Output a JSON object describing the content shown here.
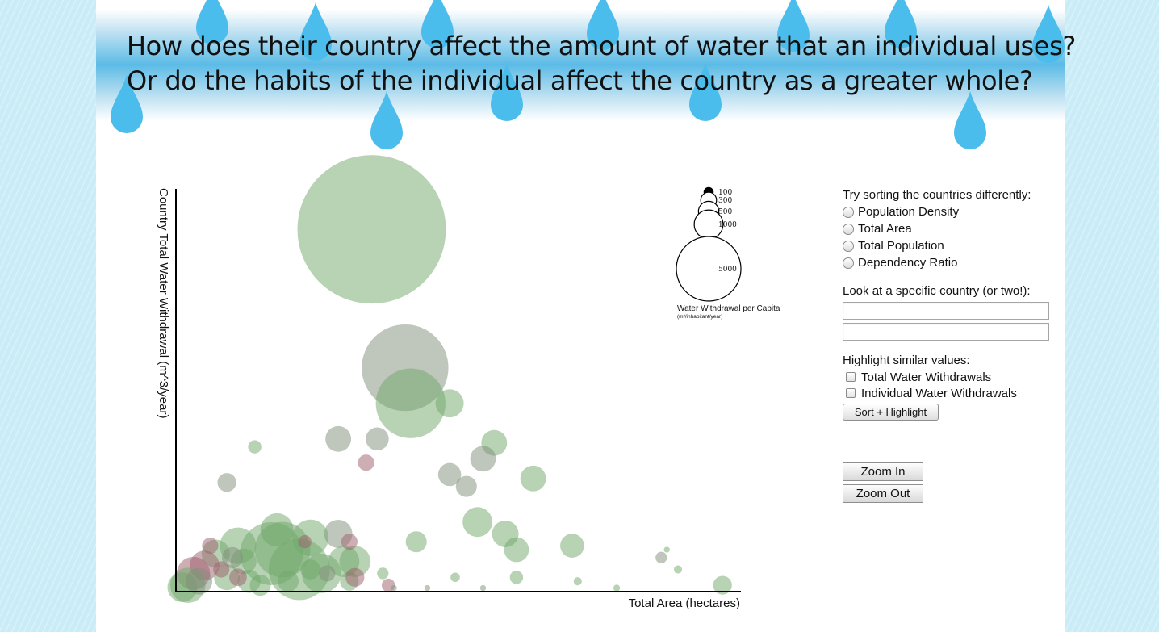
{
  "headline": {
    "line1": "How does their country affect the amount of water that an individual uses?",
    "line2": "Or do the habits of the individual affect the country as a greater whole?"
  },
  "chart_data": {
    "type": "scatter",
    "title": "",
    "xlabel": "Total Area (hectares)",
    "ylabel": "Country Total Water Withdrawal (m^3/year)",
    "size_legend": {
      "title": "Water Withdrawal per Capita",
      "unit": "(m³/inhabitant/year)",
      "values": [
        100,
        300,
        500,
        1000,
        5000
      ]
    },
    "colors": {
      "green": "#6fa86a",
      "gray": "#7f8e7a",
      "red": "#9e5d6b"
    },
    "points": [
      {
        "x": 0.35,
        "y": 0.91,
        "size": 5000,
        "color": "green"
      },
      {
        "x": 0.41,
        "y": 0.56,
        "size": 1700,
        "color": "gray"
      },
      {
        "x": 0.42,
        "y": 0.47,
        "size": 1100,
        "color": "green"
      },
      {
        "x": 0.36,
        "y": 0.38,
        "size": 120,
        "color": "gray"
      },
      {
        "x": 0.29,
        "y": 0.14,
        "size": 180,
        "color": "gray"
      },
      {
        "x": 0.3,
        "y": 0.07,
        "size": 220,
        "color": "green"
      },
      {
        "x": 0.32,
        "y": 0.07,
        "size": 220,
        "color": "green"
      },
      {
        "x": 0.49,
        "y": 0.47,
        "size": 180,
        "color": "green"
      },
      {
        "x": 0.29,
        "y": 0.38,
        "size": 150,
        "color": "gray"
      },
      {
        "x": 0.57,
        "y": 0.37,
        "size": 150,
        "color": "green"
      },
      {
        "x": 0.55,
        "y": 0.33,
        "size": 150,
        "color": "gray"
      },
      {
        "x": 0.49,
        "y": 0.29,
        "size": 120,
        "color": "gray"
      },
      {
        "x": 0.52,
        "y": 0.26,
        "size": 100,
        "color": "gray"
      },
      {
        "x": 0.64,
        "y": 0.28,
        "size": 150,
        "color": "green"
      },
      {
        "x": 0.61,
        "y": 0.1,
        "size": 140,
        "color": "green"
      },
      {
        "x": 0.54,
        "y": 0.17,
        "size": 200,
        "color": "green"
      },
      {
        "x": 0.59,
        "y": 0.14,
        "size": 160,
        "color": "green"
      },
      {
        "x": 0.71,
        "y": 0.11,
        "size": 130,
        "color": "green"
      },
      {
        "x": 0.43,
        "y": 0.12,
        "size": 100,
        "color": "green"
      },
      {
        "x": 0.09,
        "y": 0.27,
        "size": 80,
        "color": "gray"
      },
      {
        "x": 0.14,
        "y": 0.36,
        "size": 40,
        "color": "green"
      },
      {
        "x": 0.34,
        "y": 0.32,
        "size": 60,
        "color": "red"
      },
      {
        "x": 0.17,
        "y": 0.09,
        "size": 900,
        "color": "green"
      },
      {
        "x": 0.19,
        "y": 0.1,
        "size": 700,
        "color": "green"
      },
      {
        "x": 0.22,
        "y": 0.05,
        "size": 850,
        "color": "green"
      },
      {
        "x": 0.24,
        "y": 0.13,
        "size": 300,
        "color": "green"
      },
      {
        "x": 0.18,
        "y": 0.15,
        "size": 250,
        "color": "green"
      },
      {
        "x": 0.26,
        "y": 0.04,
        "size": 350,
        "color": "green"
      },
      {
        "x": 0.11,
        "y": 0.11,
        "size": 300,
        "color": "green"
      },
      {
        "x": 0.07,
        "y": 0.09,
        "size": 180,
        "color": "green"
      },
      {
        "x": 0.05,
        "y": 0.06,
        "size": 200,
        "color": "red"
      },
      {
        "x": 0.03,
        "y": 0.04,
        "size": 250,
        "color": "red"
      },
      {
        "x": 0.02,
        "y": 0.01,
        "size": 280,
        "color": "green"
      },
      {
        "x": 0.01,
        "y": 0.005,
        "size": 200,
        "color": "green"
      },
      {
        "x": 0.04,
        "y": 0.02,
        "size": 160,
        "color": "gray"
      },
      {
        "x": 0.12,
        "y": 0.07,
        "size": 150,
        "color": "green"
      },
      {
        "x": 0.09,
        "y": 0.03,
        "size": 150,
        "color": "green"
      },
      {
        "x": 0.1,
        "y": 0.08,
        "size": 100,
        "color": "gray"
      },
      {
        "x": 0.13,
        "y": 0.02,
        "size": 120,
        "color": "green"
      },
      {
        "x": 0.15,
        "y": 0.01,
        "size": 100,
        "color": "green"
      },
      {
        "x": 0.2,
        "y": 0.02,
        "size": 100,
        "color": "green"
      },
      {
        "x": 0.24,
        "y": 0.05,
        "size": 90,
        "color": "green"
      },
      {
        "x": 0.23,
        "y": 0.12,
        "size": 40,
        "color": "red"
      },
      {
        "x": 0.31,
        "y": 0.02,
        "size": 80,
        "color": "green"
      },
      {
        "x": 0.31,
        "y": 0.12,
        "size": 60,
        "color": "red"
      },
      {
        "x": 0.32,
        "y": 0.03,
        "size": 80,
        "color": "red"
      },
      {
        "x": 0.38,
        "y": 0.01,
        "size": 40,
        "color": "red"
      },
      {
        "x": 0.08,
        "y": 0.05,
        "size": 60,
        "color": "red"
      },
      {
        "x": 0.11,
        "y": 0.03,
        "size": 70,
        "color": "red"
      },
      {
        "x": 0.06,
        "y": 0.11,
        "size": 60,
        "color": "red"
      },
      {
        "x": 0.27,
        "y": 0.04,
        "size": 60,
        "color": "gray"
      },
      {
        "x": 0.37,
        "y": 0.04,
        "size": 30,
        "color": "green"
      },
      {
        "x": 0.5,
        "y": 0.03,
        "size": 20,
        "color": "green"
      },
      {
        "x": 0.61,
        "y": 0.03,
        "size": 40,
        "color": "green"
      },
      {
        "x": 0.87,
        "y": 0.08,
        "size": 30,
        "color": "gray"
      },
      {
        "x": 0.9,
        "y": 0.05,
        "size": 15,
        "color": "green"
      },
      {
        "x": 0.98,
        "y": 0.01,
        "size": 80,
        "color": "green"
      },
      {
        "x": 0.72,
        "y": 0.02,
        "size": 15,
        "color": "green"
      },
      {
        "x": 0.79,
        "y": 0.003,
        "size": 10,
        "color": "green"
      },
      {
        "x": 0.55,
        "y": 0.003,
        "size": 8,
        "color": "gray"
      },
      {
        "x": 0.45,
        "y": 0.003,
        "size": 8,
        "color": "gray"
      },
      {
        "x": 0.39,
        "y": 0.003,
        "size": 8,
        "color": "gray"
      },
      {
        "x": 0.88,
        "y": 0.1,
        "size": 8,
        "color": "green"
      }
    ]
  },
  "controls": {
    "sort_heading": "Try sorting the countries differently:",
    "sort_options": [
      "Population Density",
      "Total Area",
      "Total Population",
      "Dependency Ratio"
    ],
    "country_heading": "Look at a specific country (or two!):",
    "country_input_1": "",
    "country_input_2": "",
    "highlight_heading": "Highlight similar values:",
    "highlight_options": [
      "Total Water Withdrawals",
      "Individual Water Withdrawals"
    ],
    "sort_highlight_button": "Sort + Highlight",
    "zoom_in_button": "Zoom In",
    "zoom_out_button": "Zoom Out"
  }
}
